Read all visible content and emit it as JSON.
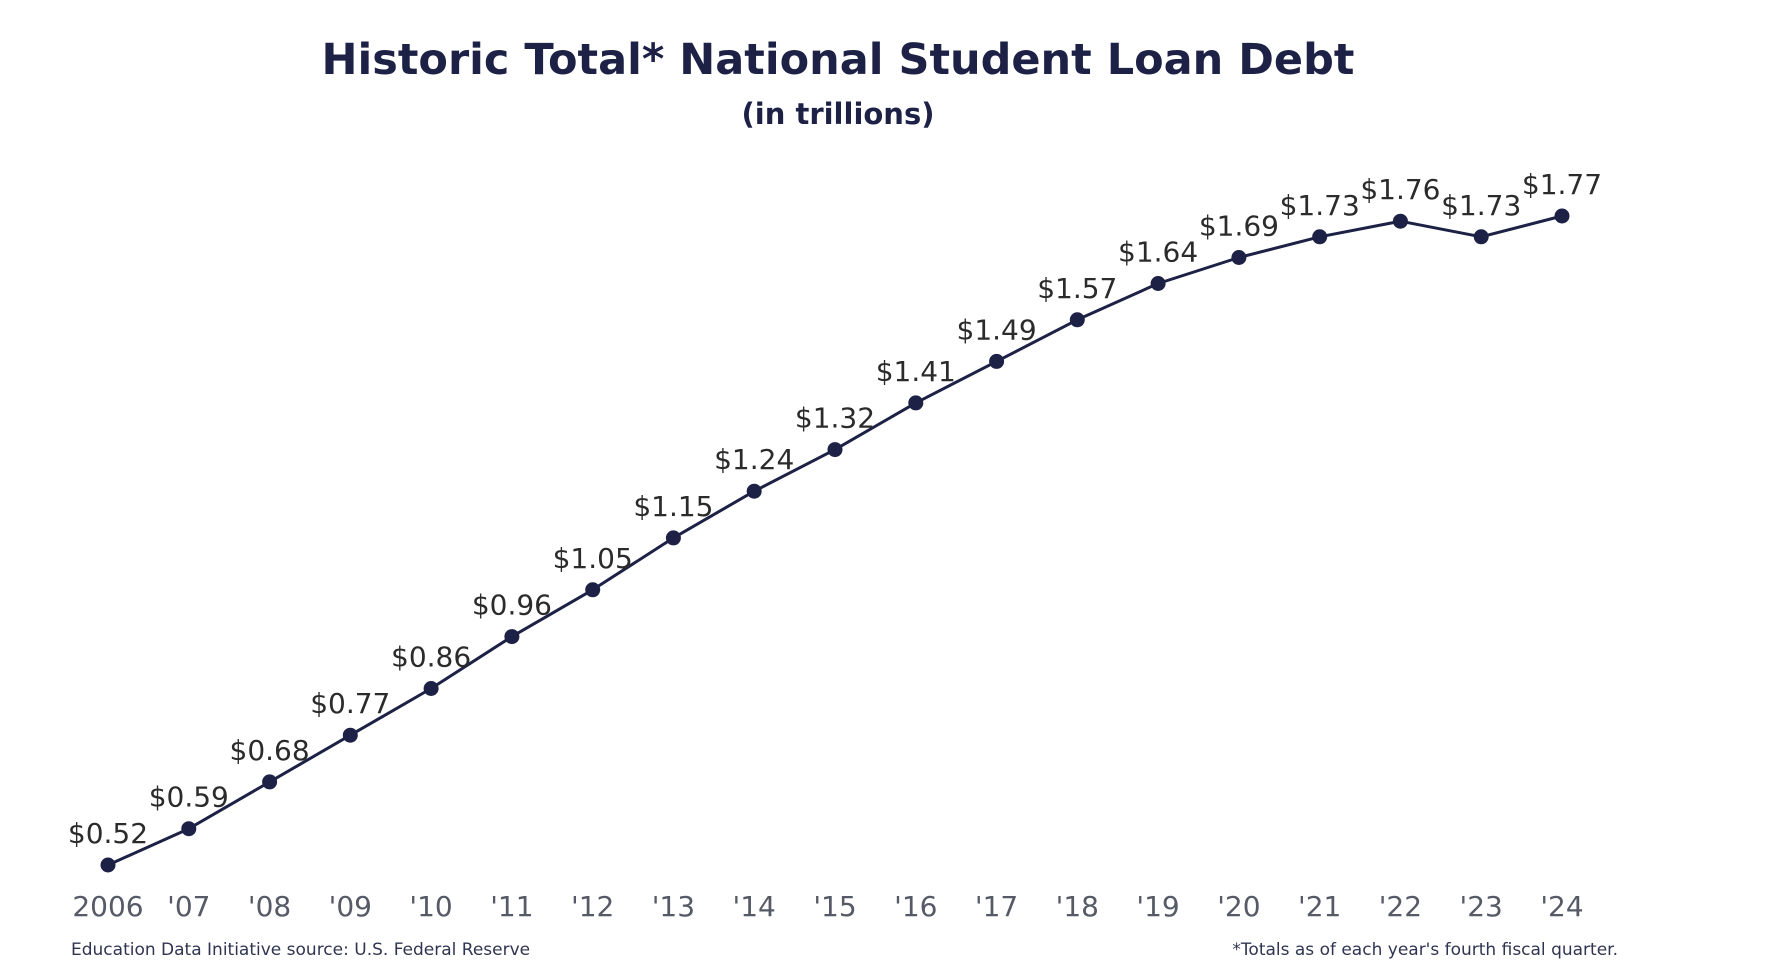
{
  "chart_data": {
    "type": "line",
    "title": "Historic Total* National Student Loan Debt",
    "subtitle": "(in trillions)",
    "categories": [
      "2006",
      "'07",
      "'08",
      "'09",
      "'10",
      "'11",
      "'12",
      "'13",
      "'14",
      "'15",
      "'16",
      "'17",
      "'18",
      "'19",
      "'20",
      "'21",
      "'22",
      "'23",
      "'24"
    ],
    "series": [
      {
        "values": [
          0.52,
          0.59,
          0.68,
          0.77,
          0.86,
          0.96,
          1.05,
          1.15,
          1.24,
          1.32,
          1.41,
          1.49,
          1.57,
          1.64,
          1.69,
          1.73,
          1.76,
          1.73,
          1.77
        ],
        "data_labels": [
          "$0.52",
          "$0.59",
          "$0.68",
          "$0.77",
          "$0.86",
          "$0.96",
          "$1.05",
          "$1.15",
          "$1.24",
          "$1.32",
          "$1.41",
          "$1.49",
          "$1.57",
          "$1.64",
          "$1.69",
          "$1.73",
          "$1.76",
          "$1.73",
          "$1.77"
        ]
      }
    ],
    "ylim": [
      0.52,
      1.77
    ],
    "grid": false,
    "legend": "none",
    "colors": {
      "line": "#1c2145",
      "marker": "#1c2145",
      "title": "#1c2145"
    }
  },
  "footer": {
    "source": "Education Data Initiative source: U.S. Federal Reserve",
    "note": "*Totals as of each year's fourth fiscal quarter."
  }
}
